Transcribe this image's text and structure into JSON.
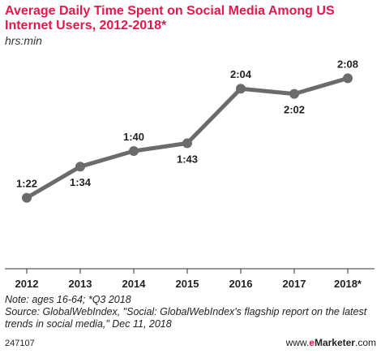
{
  "chart_data": {
    "type": "line",
    "title": "Average Daily Time Spent on Social Media Among US Internet Users, 2012-2018*",
    "subtitle": "hrs:min",
    "categories": [
      "2012",
      "2013",
      "2014",
      "2015",
      "2016",
      "2017",
      "2018*"
    ],
    "series": [
      {
        "values": [
          82,
          94,
          100,
          103,
          124,
          122,
          128
        ],
        "labels": [
          "1:22",
          "1:34",
          "1:40",
          "1:43",
          "2:04",
          "2:02",
          "2:08"
        ],
        "label_position": [
          "above",
          "below",
          "above",
          "below",
          "above",
          "below",
          "above"
        ]
      }
    ],
    "ylim": [
      60,
      140
    ],
    "grid": false,
    "legend": "none",
    "line_color": "#6b6b6b"
  },
  "footer": {
    "note": "Note: ages 16-64; *Q3 2018",
    "source": "Source: GlobalWebIndex, \"Social: GlobalWebIndex's flagship report on the latest trends in social media,\" Dec 11, 2018",
    "chart_id": "247107",
    "brand_prefix": "www.",
    "brand_accent": "e",
    "brand_name": "Marketer",
    "brand_suffix": ".com"
  },
  "colors": {
    "title": "#e5174b",
    "line": "#6b6b6b",
    "axis": "#333333"
  }
}
